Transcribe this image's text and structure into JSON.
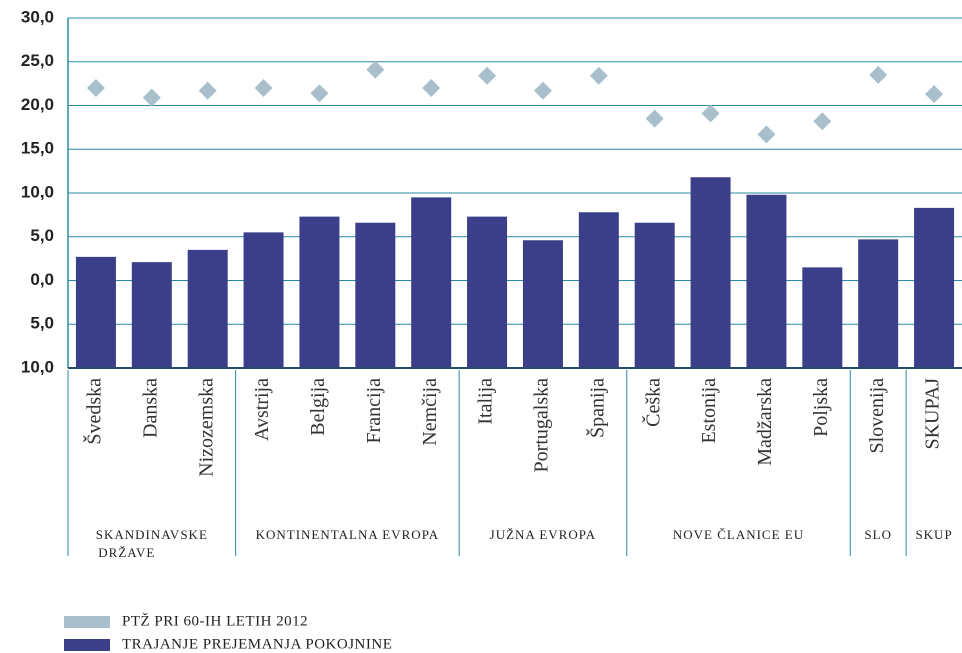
{
  "chart_data": {
    "type": "bar",
    "groups": [
      {
        "name": "SKANDINAVSKE DRŽAVE",
        "categories": [
          "Švedska",
          "Danska",
          "Nizozemska"
        ]
      },
      {
        "name": "KONTINENTALNA EVROPA",
        "categories": [
          "Avstrija",
          "Belgija",
          "Francija",
          "Nemčija"
        ]
      },
      {
        "name": "JUŽNA EVROPA",
        "categories": [
          "Italija",
          "Portugalska",
          "Španija"
        ]
      },
      {
        "name": "NOVE ČLANICE EU",
        "categories": [
          "Češka",
          "Estonija",
          "Madžarska",
          "Poljska"
        ]
      },
      {
        "name": "SLO",
        "categories": [
          "Slovenija"
        ]
      },
      {
        "name": "SKUP",
        "categories": [
          "SKUPAJ"
        ]
      }
    ],
    "series": [
      {
        "name": "PTŽ PRI 60-IH LETIH 2012",
        "color": "#a9bfcc",
        "marker": "diamond",
        "values": [
          22.0,
          20.9,
          21.7,
          22.0,
          21.4,
          24.1,
          22.0,
          23.4,
          21.7,
          23.4,
          18.5,
          19.1,
          16.7,
          18.2,
          23.5,
          21.3
        ]
      },
      {
        "name": "TRAJANJE PREJEMANJA POKOJNINE",
        "color": "#3b3f8a",
        "marker": "bar",
        "values": [
          2.7,
          2.1,
          3.5,
          5.5,
          7.3,
          6.6,
          9.5,
          7.3,
          4.6,
          7.8,
          6.6,
          11.8,
          9.8,
          1.5,
          4.7,
          8.3
        ]
      }
    ],
    "ylim": [
      -10,
      30
    ],
    "yticks": [
      {
        "value": 30,
        "label": "30,0"
      },
      {
        "value": 25,
        "label": "25,0"
      },
      {
        "value": 20,
        "label": "20,0"
      },
      {
        "value": 15,
        "label": "15,0"
      },
      {
        "value": 10,
        "label": "10,0"
      },
      {
        "value": 5,
        "label": "5,0"
      },
      {
        "value": 0,
        "label": "0,0"
      },
      {
        "value": -5,
        "label": "5,0"
      },
      {
        "value": -10,
        "label": "10,0"
      }
    ],
    "grid": true,
    "grid_color": "#2a8ba0",
    "legend": "lower-left"
  }
}
